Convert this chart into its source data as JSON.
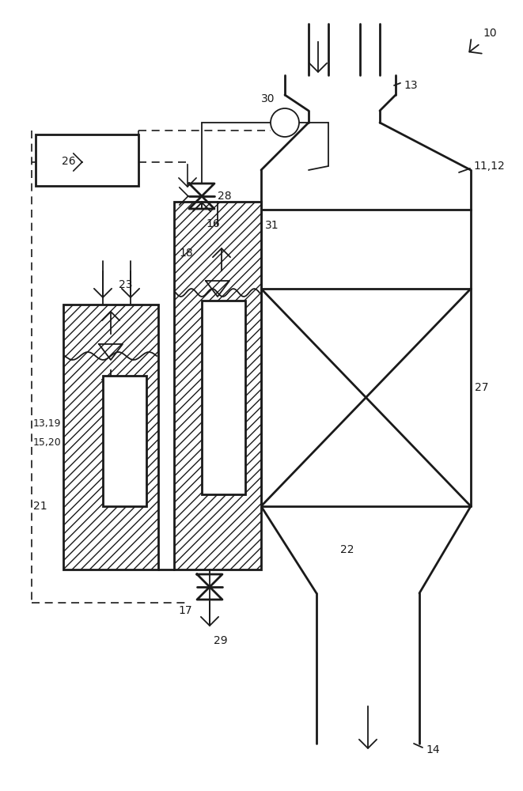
{
  "bg_color": "#ffffff",
  "line_color": "#1a1a1a",
  "lw_main": 2.0,
  "lw_thin": 1.3,
  "lw_dash": 1.2
}
